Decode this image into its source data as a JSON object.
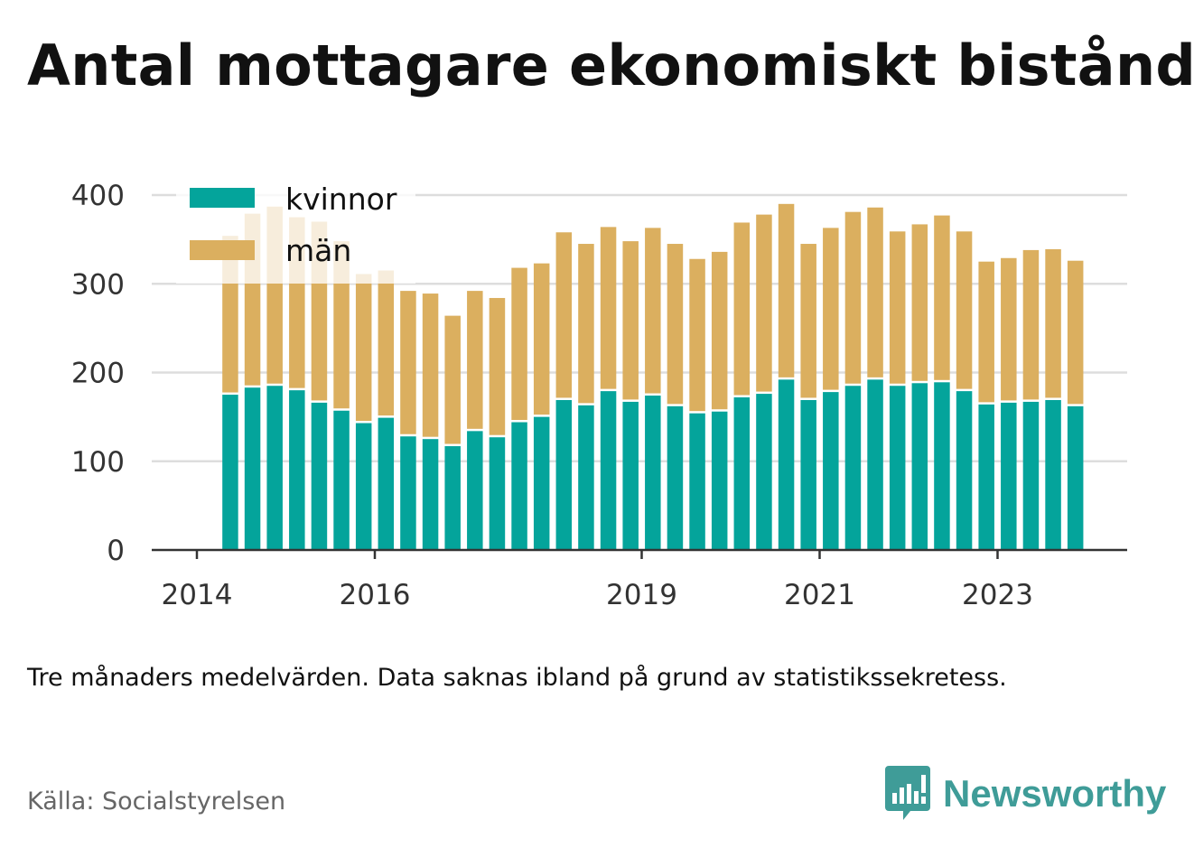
{
  "title": "Antal mottagare ekonomiskt bistånd",
  "subtitle": "Tre månaders medelvärden. Data saknas ibland på grund av statistikssekretess.",
  "source": "Källa: Socialstyrelsen",
  "brand": {
    "name": "Newsworthy",
    "icon": "newsworthy-logo-icon"
  },
  "colors": {
    "kvinnor": "#04a49b",
    "man": "#dbaf5f",
    "grid": "#dddddd",
    "axis": "#333333"
  },
  "chart_data": {
    "type": "bar",
    "stacked": true,
    "ylim": [
      0,
      400
    ],
    "yticks": [
      0,
      100,
      200,
      300,
      400
    ],
    "xtick_labels": [
      "2014",
      "2016",
      "2019",
      "2021",
      "2023"
    ],
    "x_range": [
      2014.0,
      2024.0
    ],
    "legend": {
      "placement": "top-left"
    },
    "grid": true,
    "x": [
      2014.375,
      2014.625,
      2014.875,
      2015.125,
      2015.375,
      2015.625,
      2015.875,
      2016.125,
      2016.375,
      2016.625,
      2016.875,
      2017.125,
      2017.375,
      2017.625,
      2017.875,
      2018.125,
      2018.375,
      2018.625,
      2018.875,
      2019.125,
      2019.375,
      2019.625,
      2019.875,
      2020.125,
      2020.375,
      2020.625,
      2020.875,
      2021.125,
      2021.375,
      2021.625,
      2021.875,
      2022.125,
      2022.375,
      2022.625,
      2022.875,
      2023.125,
      2023.375,
      2023.625,
      2023.875
    ],
    "series": [
      {
        "name": "kvinnor",
        "values": [
          175,
          183,
          185,
          180,
          166,
          157,
          143,
          149,
          128,
          125,
          117,
          134,
          127,
          144,
          150,
          169,
          163,
          179,
          167,
          174,
          162,
          154,
          156,
          172,
          176,
          192,
          169,
          178,
          185,
          192,
          185,
          188,
          189,
          179,
          164,
          166,
          167,
          169,
          162
        ]
      },
      {
        "name": "män",
        "values": [
          179,
          196,
          202,
          195,
          204,
          191,
          168,
          166,
          164,
          164,
          147,
          158,
          157,
          174,
          173,
          189,
          182,
          185,
          181,
          189,
          183,
          174,
          180,
          197,
          202,
          198,
          176,
          185,
          196,
          194,
          174,
          179,
          188,
          180,
          161,
          163,
          171,
          170,
          164
        ]
      }
    ]
  }
}
